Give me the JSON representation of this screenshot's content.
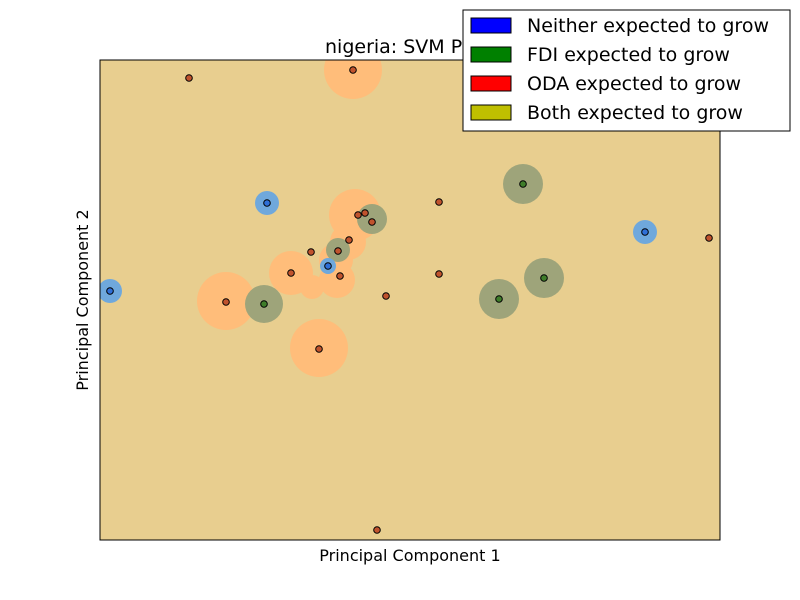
{
  "chart_data": {
    "type": "scatter",
    "title": "nigeria: SVM P",
    "xlabel": "Principal Component 1",
    "ylabel": "Principal Component 2",
    "xlim": [
      0,
      620
    ],
    "ylim": [
      0,
      480
    ],
    "ticks_visible": false,
    "legend_position": "top-right",
    "background_region_color": "#e8ce8f",
    "legend": [
      {
        "label": "Neither expected to grow",
        "color": "#0000ff"
      },
      {
        "label": "FDI expected to grow",
        "color": "#008000"
      },
      {
        "label": "ODA expected to grow",
        "color": "#ff0000"
      },
      {
        "label": "Both expected to grow",
        "color": "#bfbf00"
      }
    ],
    "region_colors": {
      "neither": "#6fa8dc",
      "fdi": "#9ea47a",
      "oda": "#ffbd7a"
    },
    "region_blobs": [
      {
        "class": "oda",
        "x": 253,
        "y": 470,
        "r": 29
      },
      {
        "class": "oda",
        "x": 126,
        "y": 239,
        "r": 29
      },
      {
        "class": "oda",
        "x": 219,
        "y": 192,
        "r": 29
      },
      {
        "class": "oda",
        "x": 255,
        "y": 325,
        "r": 26
      },
      {
        "class": "oda",
        "x": 248,
        "y": 298,
        "r": 18
      },
      {
        "class": "oda",
        "x": 236,
        "y": 280,
        "r": 17
      },
      {
        "class": "oda",
        "x": 237,
        "y": 260,
        "r": 18
      },
      {
        "class": "oda",
        "x": 191,
        "y": 267,
        "r": 22
      },
      {
        "class": "oda",
        "x": 212,
        "y": 253,
        "r": 12
      },
      {
        "class": "fdi",
        "x": 164,
        "y": 236,
        "r": 19
      },
      {
        "class": "fdi",
        "x": 423,
        "y": 356,
        "r": 20
      },
      {
        "class": "fdi",
        "x": 444,
        "y": 262,
        "r": 20
      },
      {
        "class": "fdi",
        "x": 399,
        "y": 241,
        "r": 20
      },
      {
        "class": "fdi",
        "x": 272,
        "y": 321,
        "r": 15
      },
      {
        "class": "fdi",
        "x": 238,
        "y": 290,
        "r": 12
      },
      {
        "class": "neither",
        "x": 10,
        "y": 249,
        "r": 12
      },
      {
        "class": "neither",
        "x": 167,
        "y": 337,
        "r": 12
      },
      {
        "class": "neither",
        "x": 545,
        "y": 308,
        "r": 12
      },
      {
        "class": "neither",
        "x": 228,
        "y": 274,
        "r": 8
      }
    ],
    "points": [
      {
        "x": 89,
        "y": 462,
        "class": "oda"
      },
      {
        "x": 253,
        "y": 470,
        "class": "oda"
      },
      {
        "x": 423,
        "y": 356,
        "class": "fdi"
      },
      {
        "x": 167,
        "y": 337,
        "class": "neither"
      },
      {
        "x": 339,
        "y": 338,
        "class": "oda"
      },
      {
        "x": 258,
        "y": 325,
        "class": "oda"
      },
      {
        "x": 265,
        "y": 327,
        "class": "oda"
      },
      {
        "x": 272,
        "y": 318,
        "class": "oda"
      },
      {
        "x": 545,
        "y": 308,
        "class": "neither"
      },
      {
        "x": 609,
        "y": 302,
        "class": "oda"
      },
      {
        "x": 249,
        "y": 300,
        "class": "oda"
      },
      {
        "x": 238,
        "y": 289,
        "class": "oda"
      },
      {
        "x": 211,
        "y": 288,
        "class": "oda"
      },
      {
        "x": 228,
        "y": 274,
        "class": "neither"
      },
      {
        "x": 191,
        "y": 267,
        "class": "oda"
      },
      {
        "x": 240,
        "y": 264,
        "class": "oda"
      },
      {
        "x": 339,
        "y": 266,
        "class": "oda"
      },
      {
        "x": 444,
        "y": 262,
        "class": "fdi"
      },
      {
        "x": 10,
        "y": 249,
        "class": "neither"
      },
      {
        "x": 286,
        "y": 244,
        "class": "oda"
      },
      {
        "x": 399,
        "y": 241,
        "class": "fdi"
      },
      {
        "x": 126,
        "y": 238,
        "class": "oda"
      },
      {
        "x": 164,
        "y": 236,
        "class": "fdi"
      },
      {
        "x": 219,
        "y": 191,
        "class": "oda"
      },
      {
        "x": 277,
        "y": 10,
        "class": "oda"
      }
    ]
  }
}
